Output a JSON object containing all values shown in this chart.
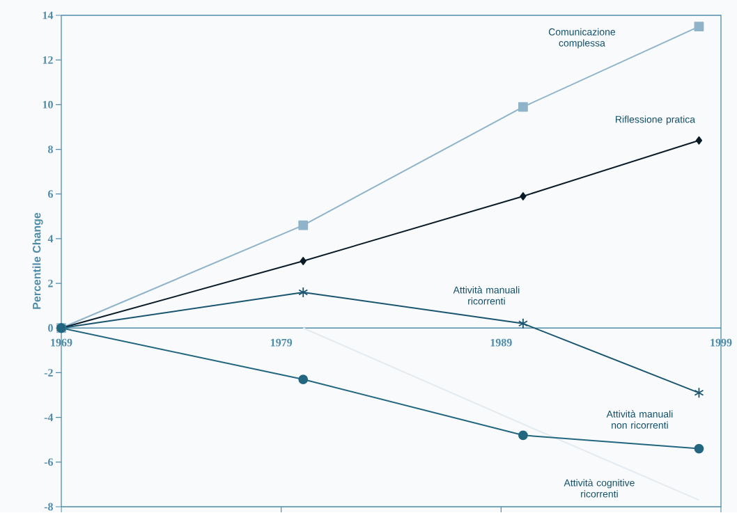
{
  "chart_data": {
    "type": "line",
    "ylabel": "Percentile Change",
    "xlim": [
      1969,
      1999
    ],
    "ylim": [
      -8,
      14
    ],
    "xticks": [
      1969,
      1979,
      1989,
      1999
    ],
    "yticks": [
      -8,
      -6,
      -4,
      -2,
      0,
      2,
      4,
      6,
      8,
      10,
      12,
      14
    ],
    "x": [
      1969,
      1980,
      1990,
      1998
    ],
    "grid": false,
    "legend": false,
    "line_style": "solid",
    "series": [
      {
        "name": "Comunicazione complessa",
        "color": "#8fb3c8",
        "marker": "square",
        "values": [
          0,
          4.6,
          9.9,
          13.5
        ]
      },
      {
        "name": "Riflessione pratica",
        "color": "#0a1b28",
        "marker": "diamond",
        "values": [
          0,
          3.0,
          5.9,
          8.4
        ]
      },
      {
        "name": "Attività manuali ricorrenti",
        "color": "#1a5570",
        "marker": "cross",
        "values": [
          0,
          1.6,
          0.2,
          -2.9
        ]
      },
      {
        "name": "Attività manuali non ricorrenti",
        "color": "#226680",
        "marker": "circle",
        "values": [
          0,
          -2.3,
          -4.8,
          -5.4
        ]
      },
      {
        "name": "Attività cognitive ricorrenti",
        "color": "#e4ebf0",
        "marker": "none",
        "x": [
          1980,
          1990,
          1998
        ],
        "values": [
          0,
          -4.3,
          -7.7
        ]
      }
    ]
  }
}
